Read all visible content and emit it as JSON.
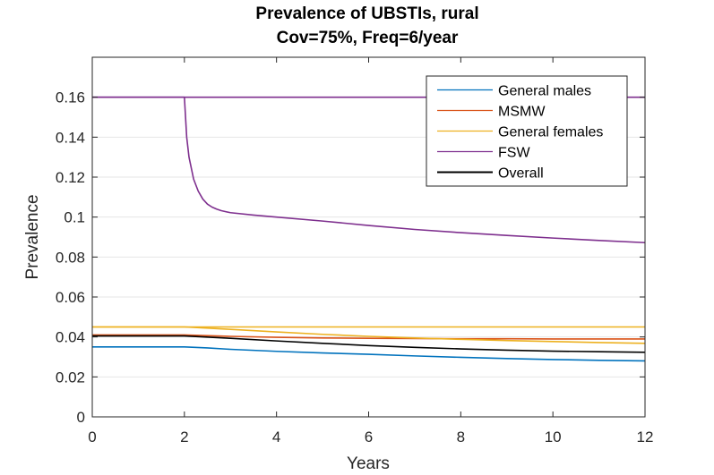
{
  "chart_data": {
    "type": "line",
    "title": [
      "Prevalence of UBSTIs, rural",
      "Cov=75%, Freq=6/year"
    ],
    "xlabel": "Years",
    "ylabel": "Prevalence",
    "xlim": [
      0,
      12
    ],
    "ylim": [
      0,
      0.18
    ],
    "xticks": [
      0,
      2,
      4,
      6,
      8,
      10,
      12
    ],
    "yticks": [
      0,
      0.02,
      0.04,
      0.06,
      0.08,
      0.1,
      0.12,
      0.14,
      0.16
    ],
    "ytick_labels": [
      "0",
      "0.02",
      "0.04",
      "0.06",
      "0.08",
      "0.1",
      "0.12",
      "0.14",
      "0.16"
    ],
    "grid": "horizontal",
    "legend_position": "top-right",
    "series": [
      {
        "name": "General males",
        "color": "#0072BD",
        "x": [
          0,
          2,
          2.5,
          3,
          4,
          5,
          6,
          7,
          8,
          9,
          10,
          11,
          12
        ],
        "y": [
          0.035,
          0.035,
          0.0345,
          0.0338,
          0.0328,
          0.032,
          0.0313,
          0.0305,
          0.0298,
          0.0292,
          0.0287,
          0.0283,
          0.028
        ]
      },
      {
        "name": "MSMW",
        "color": "#D95319",
        "x": [
          0,
          2,
          3,
          4,
          5,
          6,
          7,
          8,
          9,
          10,
          11,
          12
        ],
        "y": [
          0.041,
          0.041,
          0.0403,
          0.0398,
          0.0395,
          0.0393,
          0.0392,
          0.0391,
          0.0391,
          0.039,
          0.039,
          0.039
        ]
      },
      {
        "name": "General females",
        "color": "#EDB120",
        "x": [
          0,
          2,
          3,
          4,
          5,
          6,
          7,
          8,
          9,
          10,
          11,
          12
        ],
        "y": [
          0.045,
          0.045,
          0.0438,
          0.0425,
          0.0413,
          0.0403,
          0.0395,
          0.0388,
          0.0382,
          0.0377,
          0.0372,
          0.0368
        ]
      },
      {
        "name": "General females",
        "color": "#EDB120",
        "x": [
          0,
          12
        ],
        "y": [
          0.045,
          0.045
        ]
      },
      {
        "name": "FSW",
        "color": "#7E2F8E",
        "x": [
          0,
          2,
          2.05,
          2.1,
          2.2,
          2.3,
          2.4,
          2.5,
          2.6,
          2.7,
          2.8,
          3,
          3.5,
          4,
          5,
          6,
          7,
          8,
          9,
          10,
          11,
          12
        ],
        "y": [
          0.16,
          0.16,
          0.14,
          0.13,
          0.119,
          0.113,
          0.109,
          0.1065,
          0.105,
          0.104,
          0.1032,
          0.1022,
          0.101,
          0.1,
          0.098,
          0.0958,
          0.0938,
          0.0922,
          0.0908,
          0.0895,
          0.0883,
          0.0872
        ]
      },
      {
        "name": "FSW",
        "color": "#7E2F8E",
        "x": [
          0,
          12
        ],
        "y": [
          0.16,
          0.16
        ]
      },
      {
        "name": "Overall",
        "color": "#000000",
        "x": [
          0,
          2,
          3,
          4,
          5,
          6,
          7,
          8,
          9,
          10,
          11,
          12
        ],
        "y": [
          0.0405,
          0.0405,
          0.0393,
          0.038,
          0.0368,
          0.0357,
          0.0348,
          0.034,
          0.0334,
          0.0329,
          0.0326,
          0.0323
        ]
      }
    ],
    "legend": [
      {
        "name": "General males",
        "color": "#0072BD"
      },
      {
        "name": "MSMW",
        "color": "#D95319"
      },
      {
        "name": "General females",
        "color": "#EDB120"
      },
      {
        "name": "FSW",
        "color": "#7E2F8E"
      },
      {
        "name": "Overall",
        "color": "#000000"
      }
    ]
  }
}
